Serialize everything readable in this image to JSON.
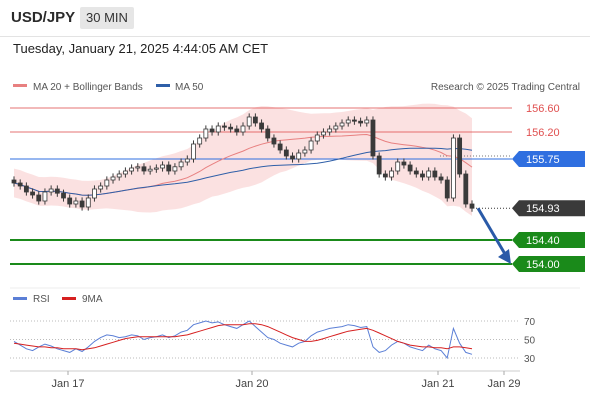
{
  "header": {
    "pair": "USD/JPY",
    "timeframe": "30 MIN",
    "datetime": "Tuesday, January 21, 2025 4:44:05 AM CET"
  },
  "legend": {
    "ma20_bb": "MA 20 + Bollinger Bands",
    "ma50": "MA 50",
    "credit": "Research © 2025 Trading Central"
  },
  "chart_data": [
    {
      "type": "candlestick",
      "x_ticks": [
        "Jan 17",
        "Jan 20",
        "Jan 21",
        "Jan 29"
      ],
      "ylim": [
        153.8,
        156.8
      ],
      "levels": [
        {
          "label": "156.60",
          "value": 156.6,
          "kind": "resistance",
          "color": "#e05050"
        },
        {
          "label": "156.20",
          "value": 156.2,
          "kind": "resistance",
          "color": "#e05050"
        },
        {
          "label": "155.75",
          "value": 155.75,
          "kind": "pivot",
          "color": "#2f6fe0"
        },
        {
          "label": "154.93",
          "value": 154.93,
          "kind": "last-price",
          "color": "#333333"
        },
        {
          "label": "154.40",
          "value": 154.4,
          "kind": "target",
          "color": "#1a8a1a"
        },
        {
          "label": "154.00",
          "value": 154.0,
          "kind": "target",
          "color": "#1a8a1a"
        }
      ],
      "series": [
        {
          "name": "MA 20 + Bollinger Bands",
          "color": "#e88080"
        },
        {
          "name": "MA 50",
          "color": "#2f5fa8"
        }
      ],
      "candles_close": [
        155.35,
        155.3,
        155.2,
        155.15,
        155.05,
        155.2,
        155.25,
        155.18,
        155.1,
        155.0,
        155.05,
        154.95,
        155.1,
        155.25,
        155.3,
        155.4,
        155.45,
        155.5,
        155.55,
        155.6,
        155.62,
        155.55,
        155.58,
        155.6,
        155.65,
        155.55,
        155.62,
        155.7,
        155.75,
        156.0,
        156.1,
        156.25,
        156.2,
        156.3,
        156.28,
        156.25,
        156.2,
        156.3,
        156.45,
        156.35,
        156.25,
        156.1,
        156.0,
        155.9,
        155.8,
        155.75,
        155.85,
        155.9,
        156.05,
        156.15,
        156.2,
        156.25,
        156.3,
        156.35,
        156.4,
        156.38,
        156.35,
        156.4,
        155.8,
        155.5,
        155.45,
        155.55,
        155.7,
        155.65,
        155.55,
        155.5,
        155.45,
        155.55,
        155.45,
        155.4,
        155.1,
        156.1,
        155.5,
        155.0,
        154.93
      ],
      "direction_arrow": {
        "from": 154.93,
        "to": 154.0
      }
    },
    {
      "type": "line",
      "title": "RSI",
      "series": [
        {
          "name": "RSI",
          "color": "#5b7fd6"
        },
        {
          "name": "9MA",
          "color": "#d62020"
        }
      ],
      "y_ticks": [
        "70",
        "50",
        "30"
      ],
      "ylim": [
        20,
        80
      ],
      "rsi_values": [
        48,
        44,
        40,
        38,
        42,
        45,
        43,
        40,
        38,
        36,
        40,
        37,
        42,
        48,
        52,
        55,
        54,
        52,
        53,
        55,
        54,
        50,
        52,
        53,
        55,
        52,
        54,
        58,
        60,
        66,
        68,
        70,
        68,
        69,
        66,
        64,
        62,
        66,
        70,
        64,
        58,
        52,
        50,
        46,
        44,
        42,
        46,
        48,
        54,
        58,
        60,
        62,
        63,
        64,
        66,
        65,
        63,
        64,
        42,
        36,
        38,
        44,
        48,
        46,
        42,
        40,
        38,
        44,
        40,
        38,
        30,
        62,
        46,
        36,
        34
      ],
      "ma9_values": [
        46,
        45,
        44,
        43,
        42,
        42,
        41,
        41,
        40,
        40,
        40,
        39,
        40,
        41,
        43,
        45,
        47,
        49,
        51,
        52,
        53,
        53,
        53,
        53,
        53,
        53,
        53,
        54,
        55,
        57,
        59,
        61,
        63,
        65,
        66,
        66,
        66,
        66,
        67,
        67,
        66,
        64,
        61,
        58,
        55,
        52,
        50,
        48,
        48,
        49,
        51,
        53,
        55,
        57,
        59,
        60,
        61,
        62,
        60,
        57,
        54,
        51,
        48,
        46,
        44,
        43,
        42,
        42,
        41,
        41,
        40,
        42,
        42,
        41,
        40
      ]
    }
  ]
}
